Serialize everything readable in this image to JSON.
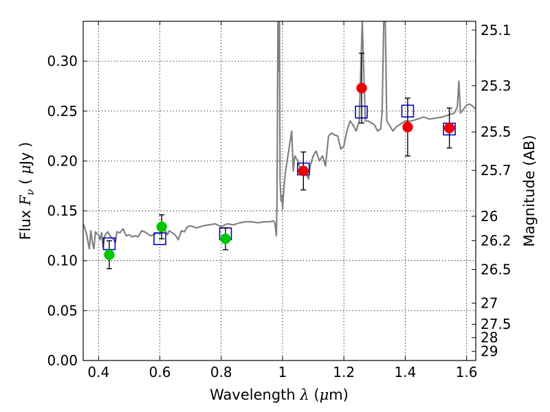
{
  "chart_data": {
    "type": "scatter",
    "xlabel": "Wavelength  λ (μm)",
    "ylabel": "Flux  F_ν  ( μJy )",
    "ylabel_parts": {
      "prefix": "Flux  ",
      "symbol": "F",
      "subscript": "ν",
      "open": "  ( ",
      "mu": "μ",
      "unit": "Jy )"
    },
    "xlabel_parts": {
      "prefix": "Wavelength  ",
      "symbol": "λ",
      "open": " (",
      "mu": "μ",
      "unit": "m)"
    },
    "y2label": "Magnitude (AB)",
    "xlim": [
      0.35,
      1.63
    ],
    "ylim": [
      0.0,
      0.34
    ],
    "grid": true,
    "x_ticks": [
      0.4,
      0.6,
      0.8,
      1.0,
      1.2,
      1.4,
      1.6
    ],
    "x_tick_labels": [
      "0.4",
      "0.6",
      "0.8",
      "1",
      "1.2",
      "1.4",
      "1.6"
    ],
    "y_ticks": [
      0.0,
      0.05,
      0.1,
      0.15,
      0.2,
      0.25,
      0.3
    ],
    "y_tick_labels": [
      "0.00",
      "0.05",
      "0.10",
      "0.15",
      "0.20",
      "0.25",
      "0.30"
    ],
    "mag_ticks": [
      25.1,
      25.3,
      25.5,
      25.7,
      26,
      26.2,
      26.5,
      27,
      27.5,
      28,
      29
    ],
    "mag_tick_labels": [
      "25.1",
      "25.3",
      "25.5",
      "25.7",
      "26",
      "26.2",
      "26.5",
      "27",
      "27.5",
      "28",
      "29"
    ],
    "colors": {
      "template": "#808080",
      "model_box": "#0000cc",
      "green": "#00c800",
      "red": "#ee0000",
      "error": "#000000",
      "grid": "#000000"
    },
    "template_spectrum": {
      "x": [
        0.35,
        0.355,
        0.36,
        0.365,
        0.37,
        0.375,
        0.38,
        0.385,
        0.39,
        0.395,
        0.4,
        0.405,
        0.41,
        0.415,
        0.42,
        0.43,
        0.44,
        0.45,
        0.455,
        0.46,
        0.47,
        0.48,
        0.49,
        0.5,
        0.51,
        0.52,
        0.53,
        0.54,
        0.55,
        0.56,
        0.57,
        0.58,
        0.59,
        0.6,
        0.61,
        0.62,
        0.625,
        0.63,
        0.64,
        0.65,
        0.66,
        0.67,
        0.68,
        0.69,
        0.7,
        0.72,
        0.74,
        0.76,
        0.78,
        0.8,
        0.82,
        0.84,
        0.86,
        0.88,
        0.9,
        0.92,
        0.94,
        0.96,
        0.97,
        0.975,
        0.98,
        0.982,
        0.985,
        0.987,
        0.989,
        0.99,
        0.992,
        0.995,
        0.998,
        1.0,
        1.005,
        1.01,
        1.02,
        1.03,
        1.035,
        1.04,
        1.05,
        1.06,
        1.07,
        1.08,
        1.085,
        1.09,
        1.1,
        1.11,
        1.12,
        1.13,
        1.14,
        1.15,
        1.16,
        1.17,
        1.18,
        1.19,
        1.2,
        1.21,
        1.22,
        1.23,
        1.24,
        1.25,
        1.26,
        1.27,
        1.28,
        1.29,
        1.3,
        1.31,
        1.32,
        1.325,
        1.33,
        1.335,
        1.34,
        1.35,
        1.36,
        1.37,
        1.38,
        1.39,
        1.4,
        1.42,
        1.44,
        1.46,
        1.48,
        1.5,
        1.52,
        1.54,
        1.56,
        1.57,
        1.575,
        1.58,
        1.59,
        1.6,
        1.61,
        1.62,
        1.63
      ],
      "y": [
        0.137,
        0.133,
        0.128,
        0.12,
        0.112,
        0.13,
        0.118,
        0.112,
        0.129,
        0.127,
        0.126,
        0.121,
        0.128,
        0.113,
        0.125,
        0.129,
        0.124,
        0.121,
        0.118,
        0.129,
        0.128,
        0.132,
        0.125,
        0.126,
        0.124,
        0.125,
        0.124,
        0.13,
        0.129,
        0.127,
        0.125,
        0.126,
        0.128,
        0.127,
        0.132,
        0.129,
        0.126,
        0.13,
        0.128,
        0.126,
        0.121,
        0.13,
        0.129,
        0.134,
        0.135,
        0.133,
        0.135,
        0.136,
        0.137,
        0.134,
        0.137,
        0.136,
        0.138,
        0.139,
        0.139,
        0.138,
        0.139,
        0.139,
        0.14,
        0.138,
        0.125,
        0.16,
        0.34,
        0.34,
        0.29,
        0.34,
        0.18,
        0.16,
        0.165,
        0.152,
        0.175,
        0.19,
        0.21,
        0.23,
        0.19,
        0.205,
        0.2,
        0.19,
        0.188,
        0.185,
        0.182,
        0.195,
        0.205,
        0.21,
        0.2,
        0.205,
        0.195,
        0.225,
        0.228,
        0.226,
        0.225,
        0.212,
        0.215,
        0.23,
        0.24,
        0.236,
        0.23,
        0.24,
        0.34,
        0.24,
        0.24,
        0.238,
        0.236,
        0.23,
        0.232,
        0.25,
        0.34,
        0.34,
        0.24,
        0.235,
        0.23,
        0.234,
        0.236,
        0.238,
        0.24,
        0.24,
        0.242,
        0.244,
        0.242,
        0.243,
        0.244,
        0.246,
        0.248,
        0.254,
        0.28,
        0.248,
        0.252,
        0.256,
        0.257,
        0.255,
        0.252
      ]
    },
    "model_boxes": [
      {
        "x": 0.435,
        "y": 0.117
      },
      {
        "x": 0.6,
        "y": 0.122
      },
      {
        "x": 0.814,
        "y": 0.127
      },
      {
        "x": 1.068,
        "y": 0.192
      },
      {
        "x": 1.257,
        "y": 0.249
      },
      {
        "x": 1.408,
        "y": 0.25
      },
      {
        "x": 1.544,
        "y": 0.232
      }
    ],
    "observed": [
      {
        "x": 0.435,
        "y": 0.106,
        "err": 0.014,
        "color": "green"
      },
      {
        "x": 0.606,
        "y": 0.134,
        "err": 0.012,
        "color": "green"
      },
      {
        "x": 0.814,
        "y": 0.122,
        "err": 0.011,
        "color": "green"
      },
      {
        "x": 1.068,
        "y": 0.19,
        "err": 0.019,
        "color": "red"
      },
      {
        "x": 1.258,
        "y": 0.273,
        "err": 0.035,
        "color": "red"
      },
      {
        "x": 1.408,
        "y": 0.234,
        "err": 0.029,
        "color": "red"
      },
      {
        "x": 1.544,
        "y": 0.233,
        "err": 0.02,
        "color": "red"
      }
    ]
  }
}
